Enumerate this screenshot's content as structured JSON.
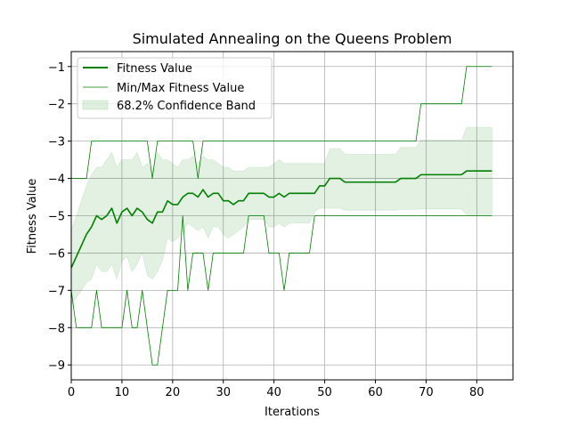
{
  "chart_data": {
    "type": "line",
    "title": "Simulated Annealing on the Queens Problem",
    "xlabel": "Iterations",
    "ylabel": "Fitness Value",
    "xlim": [
      0,
      87.15
    ],
    "ylim": [
      -9.4,
      -0.6
    ],
    "xticks": [
      0,
      10,
      20,
      30,
      40,
      50,
      60,
      70,
      80
    ],
    "yticks": [
      -9,
      -8,
      -7,
      -6,
      -5,
      -4,
      -3,
      -2,
      -1
    ],
    "grid": true,
    "legend_position": "top-left",
    "colors": {
      "line": "#008000",
      "band": "#008000"
    },
    "legend": [
      "Fitness Value",
      "Min/Max Fitness Value",
      "68.2% Confidence Band"
    ],
    "x": [
      0,
      1,
      2,
      3,
      4,
      5,
      6,
      7,
      8,
      9,
      10,
      11,
      12,
      13,
      14,
      15,
      16,
      17,
      18,
      19,
      20,
      21,
      22,
      23,
      24,
      25,
      26,
      27,
      28,
      29,
      30,
      31,
      32,
      33,
      34,
      35,
      36,
      37,
      38,
      39,
      40,
      41,
      42,
      43,
      44,
      45,
      46,
      47,
      48,
      49,
      50,
      51,
      52,
      53,
      54,
      55,
      56,
      57,
      58,
      59,
      60,
      61,
      62,
      63,
      64,
      65,
      66,
      67,
      68,
      69,
      70,
      71,
      72,
      73,
      74,
      75,
      76,
      77,
      78,
      79,
      80,
      81,
      82,
      83
    ],
    "series": [
      {
        "name": "Fitness Value",
        "values": [
          -6.4,
          -6.1,
          -5.8,
          -5.5,
          -5.3,
          -5.0,
          -5.1,
          -5.0,
          -4.8,
          -5.2,
          -4.9,
          -4.8,
          -5.0,
          -4.8,
          -4.9,
          -5.1,
          -5.2,
          -4.9,
          -4.9,
          -4.6,
          -4.7,
          -4.7,
          -4.5,
          -4.4,
          -4.4,
          -4.5,
          -4.3,
          -4.5,
          -4.4,
          -4.4,
          -4.6,
          -4.6,
          -4.7,
          -4.6,
          -4.6,
          -4.4,
          -4.4,
          -4.4,
          -4.4,
          -4.5,
          -4.5,
          -4.4,
          -4.5,
          -4.4,
          -4.4,
          -4.4,
          -4.4,
          -4.4,
          -4.4,
          -4.2,
          -4.2,
          -4.0,
          -4.0,
          -4.0,
          -4.1,
          -4.1,
          -4.1,
          -4.1,
          -4.1,
          -4.1,
          -4.1,
          -4.1,
          -4.1,
          -4.1,
          -4.1,
          -4.0,
          -4.0,
          -4.0,
          -4.0,
          -3.9,
          -3.9,
          -3.9,
          -3.9,
          -3.9,
          -3.9,
          -3.9,
          -3.9,
          -3.9,
          -3.8,
          -3.8,
          -3.8,
          -3.8,
          -3.8,
          -3.8
        ]
      },
      {
        "name": "Min/Max Fitness Value",
        "min": [
          -7,
          -8,
          -8,
          -8,
          -8,
          -7,
          -8,
          -8,
          -8,
          -8,
          -8,
          -7,
          -8,
          -8,
          -7,
          -8,
          -9,
          -9,
          -8,
          -7,
          -7,
          -7,
          -5,
          -7,
          -6,
          -6,
          -6,
          -7,
          -6,
          -6,
          -6,
          -6,
          -6,
          -6,
          -6,
          -5,
          -5,
          -5,
          -5,
          -6,
          -6,
          -6,
          -7,
          -6,
          -6,
          -6,
          -6,
          -6,
          -5,
          -5,
          -5,
          -5,
          -5,
          -5,
          -5,
          -5,
          -5,
          -5,
          -5,
          -5,
          -5,
          -5,
          -5,
          -5,
          -5,
          -5,
          -5,
          -5,
          -5,
          -5,
          -5,
          -5,
          -5,
          -5,
          -5,
          -5,
          -5,
          -5,
          -5,
          -5,
          -5,
          -5,
          -5,
          -5
        ],
        "max": [
          -4,
          -4,
          -4,
          -4,
          -3,
          -3,
          -3,
          -3,
          -3,
          -3,
          -3,
          -3,
          -3,
          -3,
          -3,
          -3,
          -4,
          -3,
          -3,
          -3,
          -3,
          -3,
          -3,
          -3,
          -3,
          -4,
          -3,
          -3,
          -3,
          -3,
          -3,
          -3,
          -3,
          -3,
          -3,
          -3,
          -3,
          -3,
          -3,
          -3,
          -3,
          -3,
          -3,
          -3,
          -3,
          -3,
          -3,
          -3,
          -3,
          -3,
          -3,
          -3,
          -3,
          -3,
          -3,
          -3,
          -3,
          -3,
          -3,
          -3,
          -3,
          -3,
          -3,
          -3,
          -3,
          -3,
          -3,
          -3,
          -3,
          -2,
          -2,
          -2,
          -2,
          -2,
          -2,
          -2,
          -2,
          -2,
          -1,
          -1,
          -1,
          -1,
          -1,
          -1
        ]
      },
      {
        "name": "68.2% Confidence Band",
        "lower": [
          -7.4,
          -7.2,
          -7.0,
          -6.8,
          -6.7,
          -6.3,
          -6.5,
          -6.5,
          -6.3,
          -6.7,
          -6.2,
          -6.1,
          -6.5,
          -6.3,
          -6.0,
          -6.6,
          -6.7,
          -6.5,
          -6.2,
          -5.6,
          -5.7,
          -5.6,
          -5.4,
          -5.2,
          -5.3,
          -5.4,
          -5.3,
          -5.6,
          -5.3,
          -5.3,
          -5.5,
          -5.6,
          -5.5,
          -5.4,
          -5.3,
          -5.1,
          -5.1,
          -5.1,
          -5.1,
          -5.3,
          -5.3,
          -5.2,
          -5.3,
          -5.2,
          -5.2,
          -5.2,
          -5.2,
          -5.2,
          -4.9,
          -4.8,
          -4.8,
          -4.8,
          -4.8,
          -4.8,
          -4.85,
          -4.85,
          -4.85,
          -4.85,
          -4.85,
          -4.85,
          -4.85,
          -4.85,
          -4.85,
          -4.85,
          -4.85,
          -4.83,
          -4.83,
          -4.83,
          -4.83,
          -4.82,
          -4.82,
          -4.82,
          -4.82,
          -4.82,
          -4.82,
          -4.82,
          -4.82,
          -4.82,
          -4.97,
          -4.97,
          -4.97,
          -4.97,
          -4.97,
          -4.97
        ],
        "upper": [
          -5.4,
          -5.0,
          -4.6,
          -4.2,
          -3.9,
          -3.7,
          -3.7,
          -3.5,
          -3.3,
          -3.7,
          -3.5,
          -3.5,
          -3.5,
          -3.3,
          -3.7,
          -3.6,
          -3.8,
          -3.3,
          -3.5,
          -3.5,
          -3.6,
          -3.7,
          -3.5,
          -3.5,
          -3.4,
          -3.6,
          -3.4,
          -3.5,
          -3.5,
          -3.6,
          -3.7,
          -3.7,
          -3.8,
          -3.8,
          -3.8,
          -3.7,
          -3.7,
          -3.7,
          -3.7,
          -3.7,
          -3.6,
          -3.5,
          -3.6,
          -3.6,
          -3.6,
          -3.6,
          -3.6,
          -3.6,
          -3.6,
          -3.6,
          -3.6,
          -3.2,
          -3.2,
          -3.2,
          -3.35,
          -3.35,
          -3.35,
          -3.35,
          -3.35,
          -3.35,
          -3.35,
          -3.35,
          -3.35,
          -3.35,
          -3.35,
          -3.17,
          -3.17,
          -3.17,
          -3.17,
          -2.97,
          -2.97,
          -2.97,
          -2.97,
          -2.97,
          -2.97,
          -2.97,
          -2.97,
          -2.97,
          -2.63,
          -2.63,
          -2.63,
          -2.63,
          -2.63,
          -2.63
        ]
      }
    ]
  }
}
